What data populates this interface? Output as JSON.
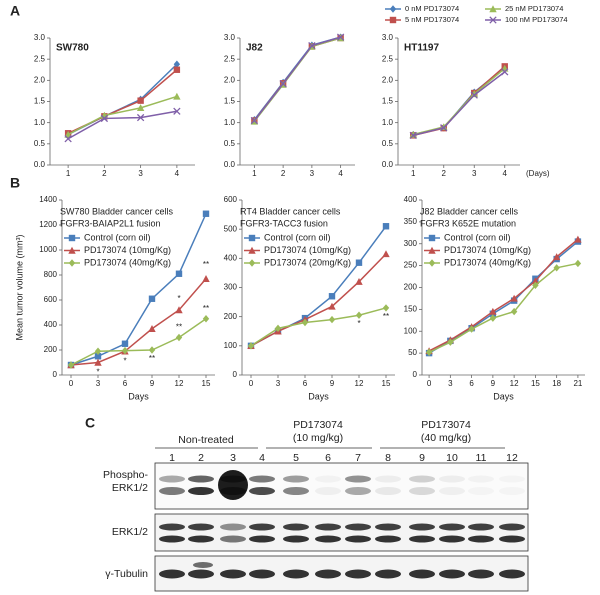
{
  "panels": [
    "A",
    "B",
    "C"
  ],
  "chart_data": [
    {
      "type": "line",
      "title": "SW780",
      "x": [
        1,
        2,
        3,
        4
      ],
      "xlim": [
        0.5,
        4.5
      ],
      "xticks": [
        1,
        2,
        3,
        4
      ],
      "ylim": [
        0,
        3
      ],
      "yticks": [
        {
          "value": 0,
          "label": "0.0"
        },
        0.5,
        {
          "value": 1,
          "label": "1.0"
        },
        1.5,
        {
          "value": 2,
          "label": "2.0"
        },
        2.5,
        {
          "value": 3,
          "label": "3.0"
        }
      ],
      "legend": "top",
      "series": [
        {
          "name": "0 nM PD173074",
          "color": "#4a7ebb",
          "marker": "diamond",
          "values": [
            0.72,
            1.15,
            1.55,
            2.38
          ]
        },
        {
          "name": "5 nM PD173074",
          "color": "#c0504d",
          "marker": "square",
          "values": [
            0.75,
            1.15,
            1.52,
            2.25
          ]
        },
        {
          "name": "25 nM PD173074",
          "color": "#9bbb59",
          "marker": "triangle",
          "values": [
            0.72,
            1.17,
            1.35,
            1.62
          ]
        },
        {
          "name": "100 nM PD173074",
          "color": "#7f5fa8",
          "marker": "cross",
          "values": [
            0.62,
            1.1,
            1.12,
            1.27
          ]
        }
      ]
    },
    {
      "type": "line",
      "title": "J82",
      "x": [
        1,
        2,
        3,
        4
      ],
      "xlim": [
        0.5,
        4.5
      ],
      "xticks": [
        1,
        2,
        3,
        4
      ],
      "ylim": [
        0,
        3
      ],
      "yticks": [
        {
          "value": 0,
          "label": "0.0"
        },
        0.5,
        {
          "value": 1,
          "label": "1.0"
        },
        1.5,
        {
          "value": 2,
          "label": "2.0"
        },
        2.5,
        {
          "value": 3,
          "label": "3.0"
        }
      ],
      "series": [
        {
          "color": "#4a7ebb",
          "marker": "diamond",
          "values": [
            1.07,
            1.95,
            2.83,
            3.02
          ]
        },
        {
          "color": "#c0504d",
          "marker": "square",
          "values": [
            1.05,
            1.93,
            2.8,
            3.0
          ]
        },
        {
          "color": "#9bbb59",
          "marker": "triangle",
          "values": [
            1.03,
            1.9,
            2.8,
            3.0
          ]
        },
        {
          "color": "#7f5fa8",
          "marker": "cross",
          "values": [
            1.05,
            1.92,
            2.82,
            3.02
          ]
        }
      ]
    },
    {
      "type": "line",
      "title": "HT1197",
      "xlabel": "(Days)",
      "x": [
        1,
        2,
        3,
        4
      ],
      "xlim": [
        0.5,
        4.5
      ],
      "xticks": [
        1,
        2,
        3,
        4
      ],
      "ylim": [
        0,
        3
      ],
      "yticks": [
        {
          "value": 0,
          "label": "0.0"
        },
        0.5,
        {
          "value": 1,
          "label": "1.0"
        },
        1.5,
        {
          "value": 2,
          "label": "2.0"
        },
        2.5,
        {
          "value": 3,
          "label": "3.0"
        }
      ],
      "series": [
        {
          "color": "#4a7ebb",
          "marker": "diamond",
          "values": [
            0.72,
            0.88,
            1.72,
            2.3
          ]
        },
        {
          "color": "#c0504d",
          "marker": "square",
          "values": [
            0.7,
            0.87,
            1.7,
            2.33
          ]
        },
        {
          "color": "#9bbb59",
          "marker": "triangle",
          "values": [
            0.72,
            0.9,
            1.68,
            2.28
          ]
        },
        {
          "color": "#7f5fa8",
          "marker": "cross",
          "values": [
            0.7,
            0.88,
            1.65,
            2.2
          ]
        }
      ]
    },
    {
      "type": "line",
      "title": "SW780 Bladder cancer cells",
      "subtitle": "FGFR3-BAIAP2L1 fusion",
      "xlabel": "Days",
      "ylabel": "Mean tumor volume (mm³)",
      "x": [
        0,
        3,
        6,
        9,
        12,
        15
      ],
      "xlim": [
        -1,
        16
      ],
      "xticks": [
        0,
        3,
        6,
        9,
        12,
        15
      ],
      "ylim": [
        0,
        1400
      ],
      "yticks": [
        0,
        200,
        400,
        600,
        800,
        1000,
        1200,
        1400
      ],
      "legend": "top-left",
      "series": [
        {
          "name": "Control (corn oil)",
          "color": "#4a7ebb",
          "marker": "square",
          "values": [
            80,
            150,
            250,
            610,
            810,
            1290
          ]
        },
        {
          "name": "PD173074 (10mg/Kg)",
          "color": "#c0504d",
          "marker": "triangle",
          "values": [
            80,
            100,
            190,
            370,
            520,
            770
          ]
        },
        {
          "name": "PD173074 (40mg/Kg)",
          "color": "#9bbb59",
          "marker": "diamond",
          "values": [
            80,
            190,
            195,
            200,
            300,
            450
          ]
        }
      ],
      "annotations": [
        {
          "text": "*",
          "x": 3,
          "y": 20
        },
        {
          "text": "*",
          "x": 6,
          "y": 110
        },
        {
          "text": "**",
          "x": 9,
          "y": 130
        },
        {
          "text": "*",
          "x": 12,
          "y": 610
        },
        {
          "text": "**",
          "x": 12,
          "y": 380
        },
        {
          "text": "**",
          "x": 15,
          "y": 880
        },
        {
          "text": "**",
          "x": 15,
          "y": 530
        }
      ]
    },
    {
      "type": "line",
      "title": "RT4 Bladder cancer cells",
      "subtitle": "FGFR3-TACC3 fusion",
      "xlabel": "Days",
      "x": [
        0,
        3,
        6,
        9,
        12,
        15
      ],
      "xlim": [
        -1,
        16
      ],
      "xticks": [
        0,
        3,
        6,
        9,
        12,
        15
      ],
      "ylim": [
        0,
        600
      ],
      "yticks": [
        0,
        100,
        200,
        300,
        400,
        500,
        600
      ],
      "legend": "top-left",
      "series": [
        {
          "name": "Control (corn oil)",
          "color": "#4a7ebb",
          "marker": "square",
          "values": [
            100,
            150,
            195,
            270,
            385,
            510
          ]
        },
        {
          "name": "PD173074 (10mg/Kg)",
          "color": "#c0504d",
          "marker": "triangle",
          "values": [
            100,
            150,
            190,
            235,
            320,
            415
          ]
        },
        {
          "name": "PD173074 (20mg/Kg)",
          "color": "#9bbb59",
          "marker": "diamond",
          "values": [
            100,
            160,
            180,
            190,
            205,
            230
          ]
        }
      ],
      "annotations": [
        {
          "text": "*",
          "x": 12,
          "y": 175
        },
        {
          "text": "**",
          "x": 15,
          "y": 200
        }
      ]
    },
    {
      "type": "line",
      "title": "J82 Bladder cancer cells",
      "subtitle": "FGFR3 K652E mutation",
      "xlabel": "Days",
      "x": [
        0,
        3,
        6,
        9,
        12,
        15,
        18,
        21
      ],
      "xlim": [
        -1,
        22
      ],
      "xticks": [
        0,
        3,
        6,
        9,
        12,
        15,
        18,
        21
      ],
      "ylim": [
        0,
        400
      ],
      "yticks": [
        0,
        50,
        100,
        150,
        200,
        250,
        300,
        350,
        400
      ],
      "legend": "top-left",
      "series": [
        {
          "name": "Control (corn oil)",
          "color": "#4a7ebb",
          "marker": "square",
          "values": [
            50,
            78,
            107,
            140,
            170,
            220,
            265,
            305
          ]
        },
        {
          "name": "PD173074 (10mg/Kg)",
          "color": "#c0504d",
          "marker": "triangle",
          "values": [
            55,
            80,
            110,
            145,
            175,
            215,
            270,
            310
          ]
        },
        {
          "name": "PD173074 (40mg/Kg)",
          "color": "#9bbb59",
          "marker": "diamond",
          "values": [
            52,
            75,
            105,
            130,
            145,
            205,
            245,
            255
          ]
        }
      ]
    }
  ],
  "blot": {
    "groups": [
      {
        "label": "Non-treated"
      },
      {
        "label": "PD173074",
        "sublabel": "(10 mg/kg)"
      },
      {
        "label": "PD173074",
        "sublabel": "(40 mg/kg)"
      }
    ],
    "lanes": [
      "1",
      "2",
      "3",
      "4",
      "5",
      "6",
      "7",
      "8",
      "9",
      "10",
      "11",
      "12"
    ],
    "row_labels": {
      "phospho": [
        "Phospho-",
        "ERK1/2"
      ],
      "erk": "ERK1/2",
      "tubulin": "γ-Tubulin"
    }
  }
}
